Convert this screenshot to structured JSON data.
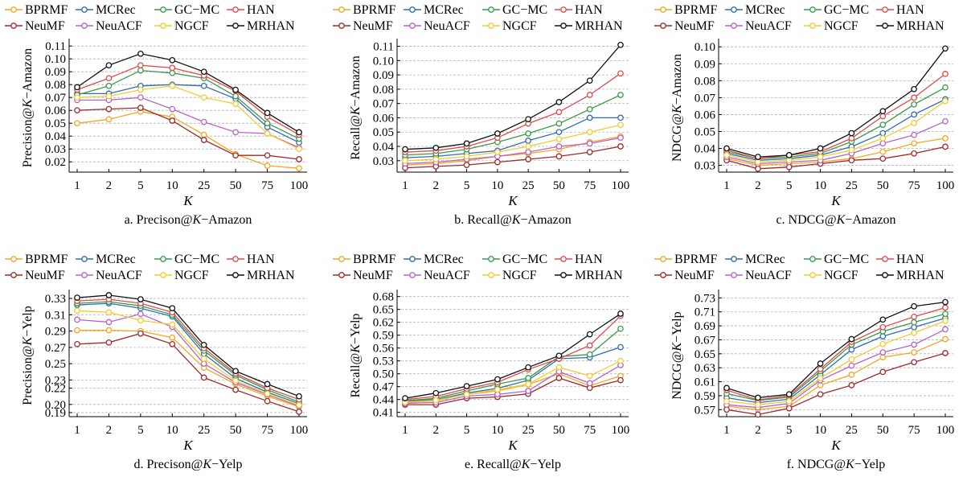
{
  "legend_markers_shape": "open-circle",
  "chart_data": [
    {
      "type": "line",
      "caption_prefix": "a. Precison@",
      "caption_k": "K",
      "caption_suffix": "−Amazon",
      "ylabel_prefix": "Precision@",
      "ylabel_k": "K",
      "ylabel_suffix": "−Amazon",
      "xlabel": "K",
      "categories": [
        "1",
        "2",
        "5",
        "10",
        "25",
        "50",
        "75",
        "100"
      ],
      "ylim": [
        0.012,
        0.112
      ],
      "yticks": [
        "0.02",
        "0.03",
        "0.04",
        "0.05",
        "0.06",
        "0.07",
        "0.08",
        "0.09",
        "0.10",
        "0.11"
      ],
      "series": [
        {
          "name": "BPRMF",
          "color": "#f5a623",
          "values": [
            0.05,
            0.053,
            0.059,
            0.055,
            0.041,
            0.026,
            0.017,
            0.015
          ]
        },
        {
          "name": "MCRec",
          "color": "#2f6db5",
          "values": [
            0.073,
            0.073,
            0.079,
            0.08,
            0.079,
            0.069,
            0.047,
            0.035
          ]
        },
        {
          "name": "GC−MC",
          "color": "#3a9a4a",
          "values": [
            0.072,
            0.079,
            0.091,
            0.089,
            0.085,
            0.071,
            0.05,
            0.038
          ]
        },
        {
          "name": "HAN",
          "color": "#e04a4a",
          "values": [
            0.076,
            0.085,
            0.095,
            0.093,
            0.087,
            0.075,
            0.055,
            0.041
          ]
        },
        {
          "name": "NeuMF",
          "color": "#9e2b2b",
          "values": [
            0.06,
            0.061,
            0.062,
            0.052,
            0.037,
            0.025,
            0.025,
            0.022
          ]
        },
        {
          "name": "NeuACF",
          "color": "#b565c9",
          "values": [
            0.068,
            0.068,
            0.07,
            0.061,
            0.051,
            0.043,
            0.042,
            0.031
          ]
        },
        {
          "name": "NGCF",
          "color": "#f2cc2e",
          "values": [
            0.07,
            0.071,
            0.076,
            0.079,
            0.07,
            0.065,
            0.042,
            0.03
          ]
        },
        {
          "name": "MRHAN",
          "color": "#111111",
          "values": [
            0.078,
            0.095,
            0.104,
            0.099,
            0.09,
            0.076,
            0.058,
            0.043
          ]
        }
      ]
    },
    {
      "type": "line",
      "caption_prefix": "b. Recall@",
      "caption_k": "K",
      "caption_suffix": "−Amazon",
      "ylabel_prefix": "Recall@",
      "ylabel_k": "K",
      "ylabel_suffix": "−Amazon",
      "xlabel": "K",
      "categories": [
        "1",
        "2",
        "5",
        "10",
        "25",
        "50",
        "75",
        "100"
      ],
      "ylim": [
        0.022,
        0.112
      ],
      "yticks": [
        "0.03",
        "0.04",
        "0.05",
        "0.06",
        "0.07",
        "0.08",
        "0.09",
        "0.10",
        "0.11"
      ],
      "series": [
        {
          "name": "BPRMF",
          "color": "#f5a623",
          "values": [
            0.027,
            0.028,
            0.03,
            0.033,
            0.035,
            0.038,
            0.043,
            0.047
          ]
        },
        {
          "name": "MCRec",
          "color": "#2f6db5",
          "values": [
            0.032,
            0.033,
            0.035,
            0.037,
            0.044,
            0.05,
            0.06,
            0.06
          ]
        },
        {
          "name": "GC−MC",
          "color": "#3a9a4a",
          "values": [
            0.034,
            0.035,
            0.038,
            0.043,
            0.049,
            0.056,
            0.066,
            0.076
          ]
        },
        {
          "name": "HAN",
          "color": "#e04a4a",
          "values": [
            0.036,
            0.037,
            0.04,
            0.046,
            0.056,
            0.064,
            0.076,
            0.091
          ]
        },
        {
          "name": "NeuMF",
          "color": "#9e2b2b",
          "values": [
            0.025,
            0.026,
            0.027,
            0.029,
            0.031,
            0.033,
            0.036,
            0.04
          ]
        },
        {
          "name": "NeuACF",
          "color": "#b565c9",
          "values": [
            0.028,
            0.029,
            0.031,
            0.033,
            0.036,
            0.04,
            0.042,
            0.046
          ]
        },
        {
          "name": "NGCF",
          "color": "#f2cc2e",
          "values": [
            0.03,
            0.031,
            0.033,
            0.036,
            0.04,
            0.045,
            0.05,
            0.055
          ]
        },
        {
          "name": "MRHAN",
          "color": "#111111",
          "values": [
            0.038,
            0.039,
            0.042,
            0.049,
            0.059,
            0.071,
            0.086,
            0.111
          ]
        }
      ]
    },
    {
      "type": "line",
      "caption_prefix": "c. NDCG@",
      "caption_k": "K",
      "caption_suffix": "−Amazon",
      "ylabel_prefix": "NDCG@",
      "ylabel_k": "K",
      "ylabel_suffix": "−Amazon",
      "xlabel": "K",
      "categories": [
        "1",
        "2",
        "5",
        "10",
        "25",
        "50",
        "75",
        "100"
      ],
      "ylim": [
        0.026,
        0.102
      ],
      "yticks": [
        "0.03",
        "0.04",
        "0.05",
        "0.06",
        "0.07",
        "0.08",
        "0.09",
        "0.10"
      ],
      "series": [
        {
          "name": "BPRMF",
          "color": "#f5a623",
          "values": [
            0.034,
            0.03,
            0.031,
            0.032,
            0.034,
            0.038,
            0.043,
            0.046
          ]
        },
        {
          "name": "MCRec",
          "color": "#2f6db5",
          "values": [
            0.037,
            0.033,
            0.034,
            0.036,
            0.041,
            0.049,
            0.06,
            0.069
          ]
        },
        {
          "name": "GC−MC",
          "color": "#3a9a4a",
          "values": [
            0.038,
            0.034,
            0.035,
            0.037,
            0.044,
            0.054,
            0.066,
            0.076
          ]
        },
        {
          "name": "HAN",
          "color": "#e04a4a",
          "values": [
            0.039,
            0.034,
            0.036,
            0.038,
            0.046,
            0.059,
            0.07,
            0.084
          ]
        },
        {
          "name": "NeuMF",
          "color": "#9e2b2b",
          "values": [
            0.033,
            0.028,
            0.029,
            0.031,
            0.033,
            0.034,
            0.037,
            0.041
          ]
        },
        {
          "name": "NeuACF",
          "color": "#b565c9",
          "values": [
            0.035,
            0.031,
            0.032,
            0.033,
            0.037,
            0.043,
            0.048,
            0.056
          ]
        },
        {
          "name": "NGCF",
          "color": "#f2cc2e",
          "values": [
            0.036,
            0.032,
            0.033,
            0.035,
            0.039,
            0.046,
            0.055,
            0.068
          ]
        },
        {
          "name": "MRHAN",
          "color": "#111111",
          "values": [
            0.04,
            0.035,
            0.036,
            0.04,
            0.049,
            0.062,
            0.075,
            0.099
          ]
        }
      ]
    },
    {
      "type": "line",
      "caption_prefix": "d. Precison@",
      "caption_k": "K",
      "caption_suffix": "−Yelp",
      "ylabel_prefix": "Precision@",
      "ylabel_k": "K",
      "ylabel_suffix": "−Yelp",
      "xlabel": "K",
      "categories": [
        "1",
        "2",
        "5",
        "10",
        "25",
        "50",
        "75",
        "100"
      ],
      "ylim": [
        0.185,
        0.335
      ],
      "yticks": [
        "0.19",
        "0.20",
        "0.22",
        "0.23",
        "0.25",
        "0.27",
        "0.29",
        "0.31",
        "0.33"
      ],
      "series": [
        {
          "name": "BPRMF",
          "color": "#f5a623",
          "values": [
            0.291,
            0.291,
            0.29,
            0.282,
            0.245,
            0.225,
            0.21,
            0.197
          ]
        },
        {
          "name": "MCRec",
          "color": "#2f6db5",
          "values": [
            0.322,
            0.324,
            0.318,
            0.308,
            0.262,
            0.232,
            0.215,
            0.201
          ]
        },
        {
          "name": "GC−MC",
          "color": "#3a9a4a",
          "values": [
            0.324,
            0.326,
            0.321,
            0.31,
            0.266,
            0.236,
            0.218,
            0.203
          ]
        },
        {
          "name": "HAN",
          "color": "#e04a4a",
          "values": [
            0.327,
            0.329,
            0.324,
            0.313,
            0.269,
            0.238,
            0.22,
            0.206
          ]
        },
        {
          "name": "NeuMF",
          "color": "#9e2b2b",
          "values": [
            0.274,
            0.276,
            0.287,
            0.274,
            0.233,
            0.218,
            0.204,
            0.191
          ]
        },
        {
          "name": "NeuACF",
          "color": "#b565c9",
          "values": [
            0.304,
            0.301,
            0.311,
            0.295,
            0.25,
            0.227,
            0.212,
            0.198
          ]
        },
        {
          "name": "NGCF",
          "color": "#f2cc2e",
          "values": [
            0.315,
            0.313,
            0.303,
            0.298,
            0.256,
            0.229,
            0.213,
            0.199
          ]
        },
        {
          "name": "MRHAN",
          "color": "#111111",
          "values": [
            0.331,
            0.334,
            0.329,
            0.318,
            0.273,
            0.241,
            0.225,
            0.21
          ]
        }
      ]
    },
    {
      "type": "line",
      "caption_prefix": "e. Recall@",
      "caption_k": "K",
      "caption_suffix": "−Yelp",
      "ylabel_prefix": "Recall@",
      "ylabel_k": "K",
      "ylabel_suffix": "−Yelp",
      "xlabel": "K",
      "categories": [
        "1",
        "2",
        "5",
        "10",
        "25",
        "50",
        "75",
        "100"
      ],
      "ylim": [
        0.4,
        0.685
      ],
      "yticks": [
        "0.41",
        "0.44",
        "0.47",
        "0.50",
        "0.53",
        "0.56",
        "0.59",
        "0.62",
        "0.65",
        "0.68"
      ],
      "series": [
        {
          "name": "BPRMF",
          "color": "#f5a623",
          "values": [
            0.433,
            0.437,
            0.452,
            0.46,
            0.475,
            0.5,
            0.472,
            0.495
          ]
        },
        {
          "name": "MCRec",
          "color": "#2f6db5",
          "values": [
            0.436,
            0.44,
            0.455,
            0.466,
            0.485,
            0.535,
            0.538,
            0.562
          ]
        },
        {
          "name": "GC−MC",
          "color": "#3a9a4a",
          "values": [
            0.437,
            0.443,
            0.46,
            0.476,
            0.49,
            0.54,
            0.545,
            0.605
          ]
        },
        {
          "name": "HAN",
          "color": "#e04a4a",
          "values": [
            0.44,
            0.447,
            0.465,
            0.48,
            0.51,
            0.535,
            0.566,
            0.635
          ]
        },
        {
          "name": "NeuMF",
          "color": "#9e2b2b",
          "values": [
            0.428,
            0.428,
            0.443,
            0.446,
            0.453,
            0.49,
            0.467,
            0.485
          ]
        },
        {
          "name": "NeuACF",
          "color": "#b565c9",
          "values": [
            0.431,
            0.433,
            0.448,
            0.452,
            0.46,
            0.505,
            0.478,
            0.52
          ]
        },
        {
          "name": "NGCF",
          "color": "#f2cc2e",
          "values": [
            0.434,
            0.438,
            0.452,
            0.463,
            0.476,
            0.515,
            0.495,
            0.53
          ]
        },
        {
          "name": "MRHAN",
          "color": "#111111",
          "values": [
            0.443,
            0.455,
            0.471,
            0.487,
            0.515,
            0.542,
            0.592,
            0.64
          ]
        }
      ]
    },
    {
      "type": "line",
      "caption_prefix": "f. NDCG@",
      "caption_k": "K",
      "caption_suffix": "−Yelp",
      "ylabel_prefix": "NDCG@",
      "ylabel_k": "K",
      "ylabel_suffix": "−Yelp",
      "xlabel": "K",
      "categories": [
        "1",
        "2",
        "5",
        "10",
        "25",
        "50",
        "75",
        "100"
      ],
      "ylim": [
        0.56,
        0.735
      ],
      "yticks": [
        "0.57",
        "0.59",
        "0.61",
        "0.63",
        "0.65",
        "0.67",
        "0.69",
        "0.71",
        "0.73"
      ],
      "series": [
        {
          "name": "BPRMF",
          "color": "#f5a623",
          "values": [
            0.575,
            0.57,
            0.575,
            0.605,
            0.62,
            0.645,
            0.652,
            0.671
          ]
        },
        {
          "name": "MCRec",
          "color": "#2f6db5",
          "values": [
            0.587,
            0.58,
            0.585,
            0.62,
            0.656,
            0.675,
            0.688,
            0.701
          ]
        },
        {
          "name": "GC−MC",
          "color": "#3a9a4a",
          "values": [
            0.593,
            0.583,
            0.588,
            0.625,
            0.663,
            0.682,
            0.695,
            0.707
          ]
        },
        {
          "name": "HAN",
          "color": "#e04a4a",
          "values": [
            0.598,
            0.584,
            0.59,
            0.628,
            0.667,
            0.688,
            0.703,
            0.716
          ]
        },
        {
          "name": "NeuMF",
          "color": "#9e2b2b",
          "values": [
            0.57,
            0.563,
            0.572,
            0.592,
            0.605,
            0.624,
            0.638,
            0.651
          ]
        },
        {
          "name": "NeuACF",
          "color": "#b565c9",
          "values": [
            0.577,
            0.573,
            0.579,
            0.612,
            0.633,
            0.652,
            0.663,
            0.685
          ]
        },
        {
          "name": "NGCF",
          "color": "#f2cc2e",
          "values": [
            0.582,
            0.577,
            0.582,
            0.615,
            0.642,
            0.664,
            0.68,
            0.697
          ]
        },
        {
          "name": "MRHAN",
          "color": "#111111",
          "values": [
            0.601,
            0.587,
            0.592,
            0.636,
            0.671,
            0.699,
            0.718,
            0.724
          ]
        }
      ]
    }
  ]
}
